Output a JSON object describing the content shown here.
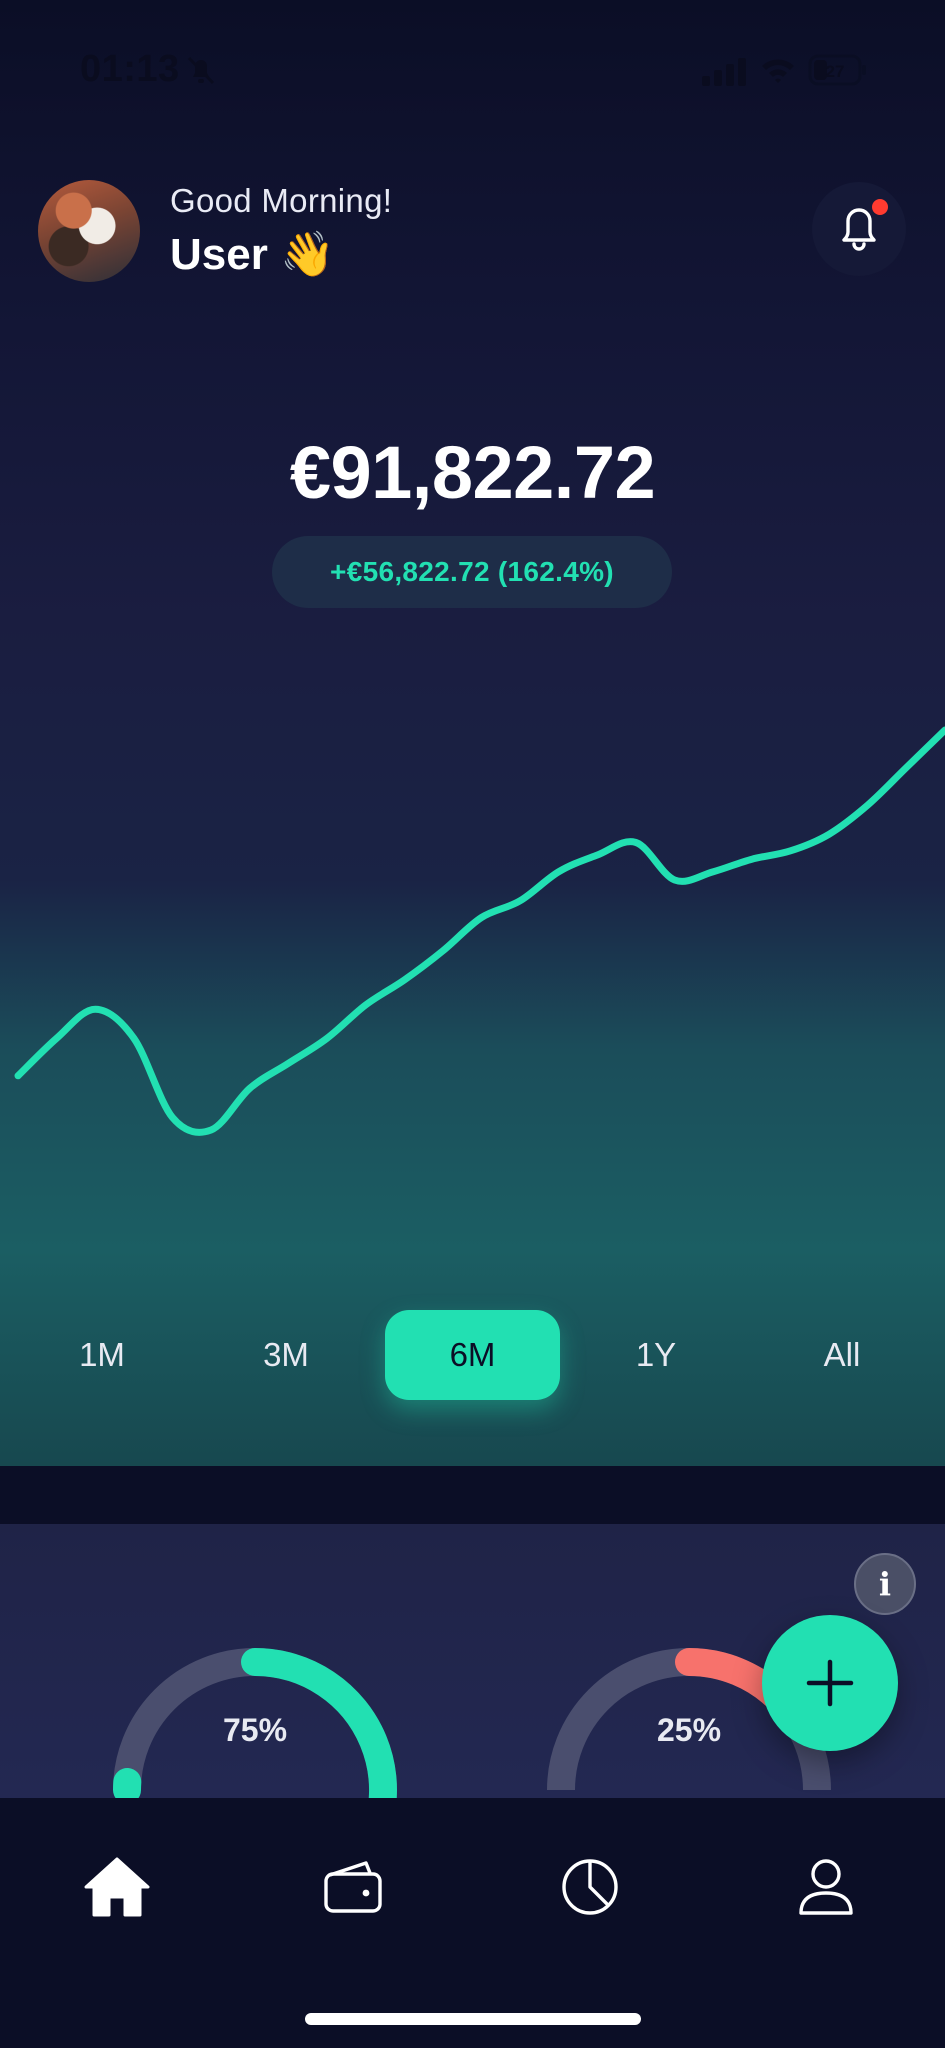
{
  "status_bar": {
    "time": "01:13",
    "battery": "27",
    "icons": [
      "bell-slash-icon",
      "cellular-signal-icon",
      "wifi-icon",
      "battery-icon"
    ]
  },
  "header": {
    "greeting": "Good Morning!",
    "username": "User 👋",
    "avatar": "avatar",
    "notification_icon": "bell-icon",
    "has_unread": true
  },
  "balance": {
    "amount": "€91,822.72",
    "change": "+€56,822.72 (162.4%)"
  },
  "chart_data": {
    "type": "line",
    "series": [
      {
        "values": [
          30,
          48,
          62,
          48,
          10,
          4,
          24,
          36,
          48,
          64,
          76,
          90,
          106,
          114,
          128,
          136,
          142,
          124,
          128,
          134,
          138,
          146,
          160,
          178,
          196
        ]
      }
    ],
    "xlabel": "",
    "ylabel": "",
    "grid": false,
    "colors": {
      "line": "#22e0b2"
    }
  },
  "range_tabs": {
    "items": [
      {
        "label": "1M"
      },
      {
        "label": "3M"
      },
      {
        "label": "6M"
      },
      {
        "label": "1Y"
      },
      {
        "label": "All"
      }
    ],
    "selected": "6M"
  },
  "portfolio": {
    "info_label": "i",
    "gauges": [
      {
        "label": "75%",
        "value": 0.75,
        "color": "#22e0b2"
      },
      {
        "label": "25%",
        "value": 0.25,
        "color": "#f7726c"
      }
    ],
    "add_icon": "plus-icon"
  },
  "bottom_nav": {
    "items": [
      {
        "icon": "home-icon",
        "active": true
      },
      {
        "icon": "wallet-icon",
        "active": false
      },
      {
        "icon": "pie-chart-icon",
        "active": false
      },
      {
        "icon": "profile-icon",
        "active": false
      }
    ]
  },
  "colors": {
    "accent": "#22e0b2",
    "negative": "#f7726c",
    "background": "#0b0e26"
  }
}
